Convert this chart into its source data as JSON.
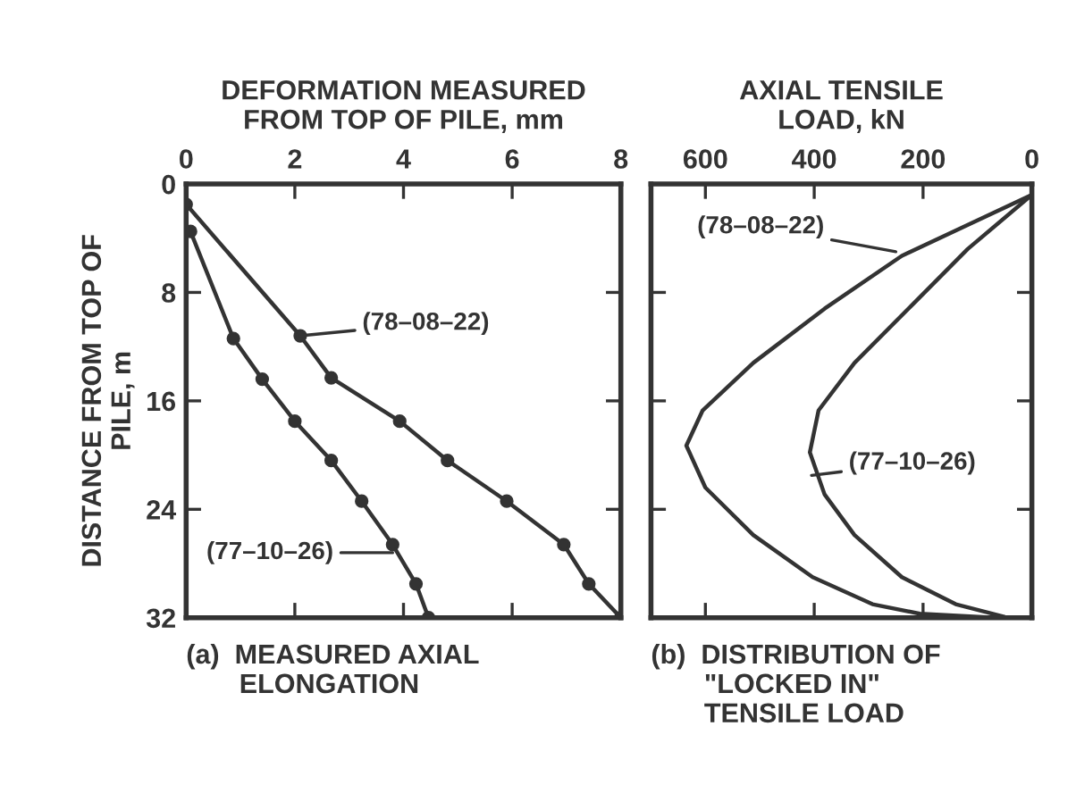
{
  "chart_data": [
    {
      "type": "line",
      "xlabel": "DEFORMATION MEASURED\nFROM TOP OF PILE, mm",
      "ylabel": "DISTANCE FROM TOP OF\nPILE, m",
      "marker": "circle",
      "line_style": "solid",
      "xlim": [
        0,
        8
      ],
      "xticks": [
        0,
        2,
        4,
        6,
        8
      ],
      "ylim": [
        32,
        0
      ],
      "yticks": [
        0,
        8,
        16,
        24,
        32
      ],
      "series": [
        {
          "color": "#333333",
          "x": [
            0,
            2.1,
            2.67,
            3.93,
            4.81,
            5.9,
            6.95,
            7.41,
            8.0
          ],
          "values": [
            1.5,
            11.2,
            14.3,
            17.5,
            20.4,
            23.4,
            26.6,
            29.5,
            32
          ]
        },
        {
          "color": "#333333",
          "x": [
            0.08,
            0.87,
            1.4,
            2.0,
            2.67,
            3.23,
            3.8,
            4.23,
            4.46
          ],
          "values": [
            3.5,
            11.4,
            14.4,
            17.5,
            20.4,
            23.4,
            26.6,
            29.5,
            32
          ]
        }
      ],
      "annotations": [
        {
          "text": "(78–08–22)",
          "x": 2.1,
          "y": 11.2
        },
        {
          "text": "(77–10–26)",
          "x": 3.8,
          "y": 27.2
        },
        "(a)  MEASURED AXIAL\n       ELONGATION"
      ]
    },
    {
      "type": "line",
      "xlabel": "AXIAL TENSILE\nLOAD, kN",
      "xlim": [
        700,
        0
      ],
      "xticks": [
        600,
        400,
        200,
        0
      ],
      "ylim": [
        32,
        0
      ],
      "tick_labels": "x",
      "line_style": "solid",
      "series": [
        {
          "color": "#333333",
          "x": [
            0,
            239,
            381,
            512,
            605,
            635,
            600,
            512,
            403,
            293,
            206,
            64
          ],
          "values": [
            0.8,
            5.3,
            9.2,
            13.2,
            16.7,
            19.3,
            22.4,
            25.9,
            29.0,
            31.0,
            31.7,
            32
          ]
        },
        {
          "color": "#333333",
          "x": [
            0,
            118,
            217,
            326,
            392,
            408,
            381,
            326,
            239,
            140,
            53
          ],
          "values": [
            0.8,
            4.8,
            8.8,
            13.2,
            16.7,
            19.8,
            22.9,
            25.9,
            29.0,
            31.0,
            31.9
          ]
        }
      ],
      "annotations": [
        {
          "text": "(78–08–22)",
          "x": 250,
          "y": 5.0
        },
        {
          "text": "(77–10–26)",
          "x": 405,
          "y": 21.5
        },
        "(b)  DISTRIBUTION OF\n       \"LOCKED IN\"\n       TENSILE LOAD"
      ]
    }
  ]
}
